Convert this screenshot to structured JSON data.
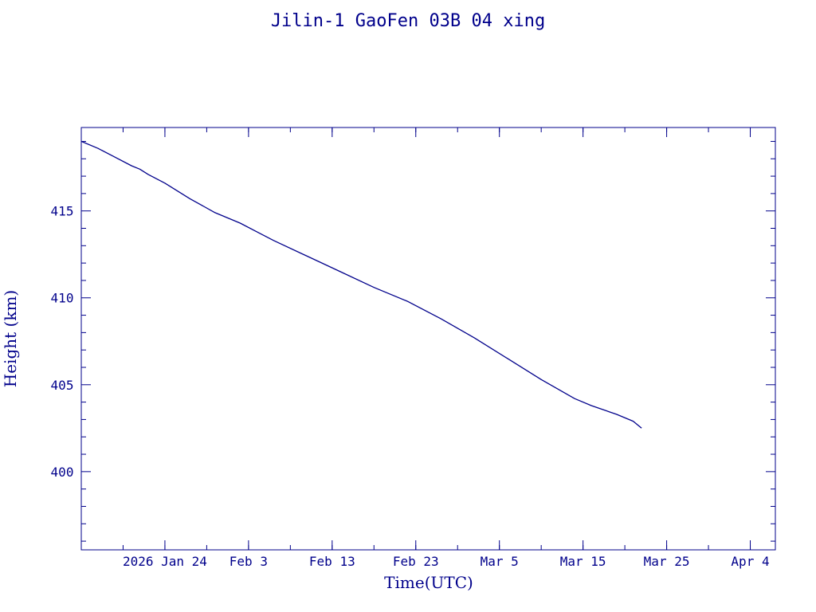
{
  "chart_data": {
    "type": "line",
    "title": "Jilin-1 GaoFen 03B 04 xing",
    "xlabel": "Time(UTC)",
    "ylabel": "Height (km)",
    "x_tick_labels": [
      "2026 Jan 24",
      "Feb  3",
      "Feb 13",
      "Feb 23",
      "Mar  5",
      "Mar 15",
      "Mar 25",
      "Apr  4"
    ],
    "x_ticks": [
      "2026-01-24",
      "2026-02-03",
      "2026-02-13",
      "2026-02-23",
      "2026-03-05",
      "2026-03-15",
      "2026-03-25",
      "2026-04-04"
    ],
    "xlim": [
      "2026-01-14",
      "2026-04-07"
    ],
    "y_ticks": [
      400,
      405,
      410,
      415
    ],
    "ylim": [
      395.5,
      419.8
    ],
    "grid": false,
    "colors": {
      "axis": "#00008b",
      "line": "#00008b"
    },
    "series": [
      {
        "x": [
          "2026-01-14",
          "2026-01-16",
          "2026-01-18",
          "2026-01-20",
          "2026-01-21",
          "2026-01-22",
          "2026-01-24",
          "2026-01-27",
          "2026-01-30",
          "2026-02-02",
          "2026-02-04",
          "2026-02-06",
          "2026-02-10",
          "2026-02-14",
          "2026-02-18",
          "2026-02-22",
          "2026-02-26",
          "2026-03-02",
          "2026-03-06",
          "2026-03-10",
          "2026-03-14",
          "2026-03-16",
          "2026-03-19",
          "2026-03-21",
          "2026-03-22"
        ],
        "y": [
          419.0,
          418.6,
          418.1,
          417.6,
          417.4,
          417.1,
          416.6,
          415.7,
          414.9,
          414.3,
          413.8,
          413.3,
          412.4,
          411.5,
          410.6,
          409.8,
          408.8,
          407.7,
          406.5,
          405.3,
          404.2,
          403.8,
          403.3,
          402.9,
          402.5
        ]
      }
    ]
  }
}
